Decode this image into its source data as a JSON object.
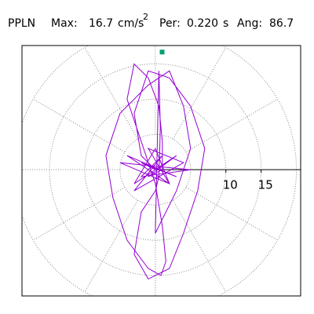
{
  "chart_data": {
    "type": "polar",
    "title": "PPLN",
    "max_label": "Max:",
    "max": 16.7,
    "unit": "cm/s",
    "unit_power": "2",
    "period_label": "Per:",
    "period": {
      "value": 0.22,
      "label": "0.220"
    },
    "period_unit": "s",
    "angle_label": "Ang:",
    "angle": 86.7,
    "xlim": [
      -18.9,
      20.6
    ],
    "ylim": [
      -17.9,
      17.6
    ],
    "rticks": [
      10,
      15
    ],
    "rgrid": [
      5,
      10,
      15,
      20
    ],
    "angle_grid_step": 30,
    "marker_color": "#00a070",
    "series": [
      {
        "color": "#9400d3",
        "x": [
          0,
          -2,
          3,
          -4,
          2,
          -1,
          4,
          -3,
          1,
          -2,
          5,
          -5,
          2,
          0,
          -3,
          3,
          -1,
          1,
          1,
          0.5,
          -1,
          -3,
          -4,
          -2,
          0,
          1,
          1.5,
          0.8,
          -1,
          -4,
          -6,
          -7,
          -5,
          -1,
          2,
          4,
          5,
          3,
          0,
          0.5,
          0.6,
          0.7,
          0.6,
          0.5,
          0,
          -2,
          -3,
          -1,
          2,
          4,
          6,
          7,
          5,
          2,
          -1,
          -3,
          -2,
          0
        ],
        "values": [
          0,
          1,
          -1,
          2,
          -2,
          3,
          1,
          -3,
          2,
          -1,
          0,
          1,
          -2,
          3,
          -2,
          2,
          -1,
          0,
          4,
          9,
          13,
          15,
          10,
          4,
          -2,
          -8,
          -13,
          -15,
          -14,
          -10,
          -4,
          2,
          8,
          12,
          14,
          9,
          3,
          -3,
          -9,
          14,
          10,
          6,
          2,
          -1,
          -3,
          -6,
          -12,
          -15.5,
          -14,
          -9,
          -3,
          3,
          9,
          13,
          14,
          8,
          2,
          0
        ]
      }
    ]
  }
}
